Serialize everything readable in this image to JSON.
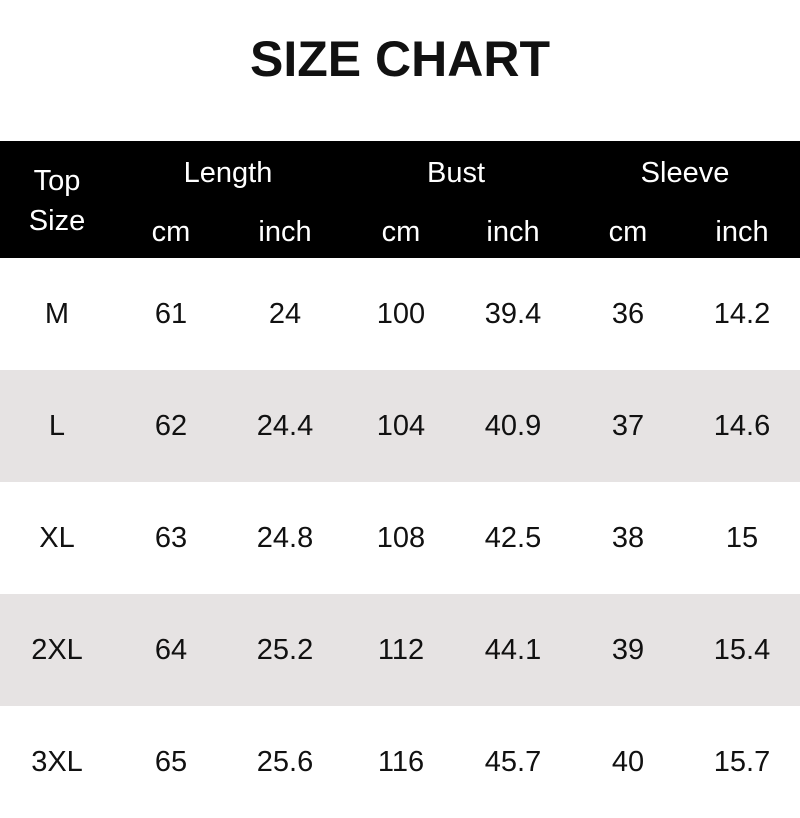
{
  "title": "SIZE CHART",
  "header": {
    "size_label_line1": "Top",
    "size_label_line2": "Size",
    "groups": [
      "Length",
      "Bust",
      "Sleeve"
    ],
    "units": [
      "cm",
      "inch",
      "cm",
      "inch",
      "cm",
      "inch"
    ]
  },
  "colors": {
    "header_bg": "#000000",
    "alt_row": "#e6e3e3"
  },
  "rows": [
    [
      "M",
      "61",
      "24",
      "100",
      "39.4",
      "36",
      "14.2"
    ],
    [
      "L",
      "62",
      "24.4",
      "104",
      "40.9",
      "37",
      "14.6"
    ],
    [
      "XL",
      "63",
      "24.8",
      "108",
      "42.5",
      "38",
      "15"
    ],
    [
      "2XL",
      "64",
      "25.2",
      "112",
      "44.1",
      "39",
      "15.4"
    ],
    [
      "3XL",
      "65",
      "25.6",
      "116",
      "45.7",
      "40",
      "15.7"
    ]
  ]
}
